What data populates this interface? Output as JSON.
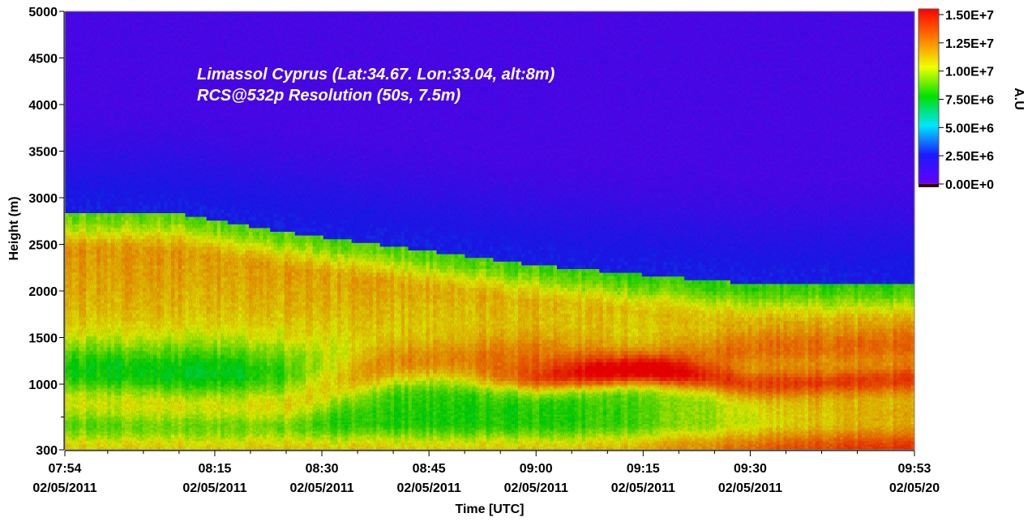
{
  "chart_data": {
    "type": "heatmap",
    "title": "",
    "annotations": [
      "Limassol Cyprus (Lat:34.67. Lon:33.04, alt:8m)",
      "RCS@532p Resolution (50s, 7.5m)"
    ],
    "xlabel": "Time [UTC]",
    "ylabel": "Height (m)",
    "x_ticks": [
      {
        "minutes": 474,
        "time": "07:54",
        "date": "02/05/2011"
      },
      {
        "minutes": 495,
        "time": "08:15",
        "date": "02/05/2011"
      },
      {
        "minutes": 510,
        "time": "08:30",
        "date": "02/05/2011"
      },
      {
        "minutes": 525,
        "time": "08:45",
        "date": "02/05/2011"
      },
      {
        "minutes": 540,
        "time": "09:00",
        "date": "02/05/2011"
      },
      {
        "minutes": 555,
        "time": "09:15",
        "date": "02/05/2011"
      },
      {
        "minutes": 570,
        "time": "09:30",
        "date": "02/05/2011"
      },
      {
        "minutes": 593,
        "time": "09:53",
        "date": "02/05/20"
      }
    ],
    "x_minor_ticks_minutes": [
      480,
      485,
      490,
      500,
      505,
      515,
      520,
      530,
      535,
      545,
      550,
      560,
      565,
      575,
      580,
      585
    ],
    "xlim_minutes": [
      474,
      593
    ],
    "y_ticks": [
      300,
      1000,
      1500,
      2000,
      2500,
      3000,
      3500,
      4000,
      4500,
      5000
    ],
    "y_minor_ticks": [
      650
    ],
    "ylim": [
      300,
      5000
    ],
    "colorbar": {
      "label": "A.U",
      "range": [
        0,
        15000000
      ],
      "ticks": [
        "0.00E+0",
        "2.50E+6",
        "5.00E+6",
        "7.50E+6",
        "1.00E+7",
        "1.25E+7",
        "1.50E+7"
      ],
      "tick_values": [
        0,
        2500000,
        5000000,
        7500000,
        10000000,
        12500000,
        15000000
      ],
      "colors": [
        "#6600ff",
        "#1a1aff",
        "#00e6ff",
        "#00e000",
        "#f0ff00",
        "#ff7a00",
        "#ff0000"
      ]
    },
    "profile_description_minutes": [
      474,
      490,
      505,
      520,
      540,
      555,
      570,
      593
    ],
    "layer_top_m": [
      2750,
      2750,
      2550,
      2400,
      2200,
      2100,
      2000,
      2000
    ],
    "bright_band_m": [
      0,
      0,
      0,
      1100,
      1050,
      1150,
      1000,
      1050
    ],
    "elevated_yellow_m": [
      850,
      800,
      800,
      1200,
      1300,
      1200,
      1350,
      1400
    ]
  }
}
